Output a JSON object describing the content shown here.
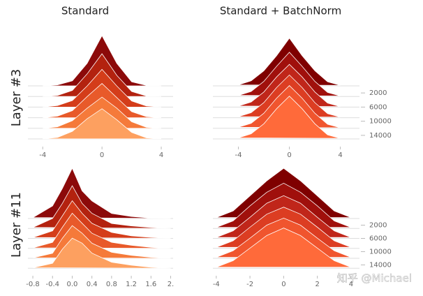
{
  "watermark": "知乎 @Michael",
  "chart_data": [
    {
      "type": "ridgeline",
      "title": "Standard",
      "ylabel": "Layer #3",
      "x": [
        -4,
        -3,
        -2,
        -1,
        0,
        1,
        2,
        3,
        4
      ],
      "xlim": [
        -5,
        4.8
      ],
      "xticks": [
        -4,
        0,
        4
      ],
      "steps": [
        0,
        3000,
        6000,
        9000,
        12000,
        15000
      ],
      "y2lim": [
        0,
        16000
      ],
      "ylim": [
        0,
        1
      ],
      "series": [
        {
          "color": "#8c0a0a",
          "values": [
            0,
            0.02,
            0.1,
            0.45,
            1.0,
            0.45,
            0.08,
            0.01,
            0
          ]
        },
        {
          "color": "#b3220f",
          "values": [
            0,
            0.02,
            0.12,
            0.45,
            0.85,
            0.42,
            0.1,
            0.01,
            0
          ]
        },
        {
          "color": "#d43d1a",
          "values": [
            0,
            0.03,
            0.13,
            0.42,
            0.75,
            0.42,
            0.12,
            0.02,
            0
          ]
        },
        {
          "color": "#e85a2a",
          "values": [
            0,
            0.03,
            0.14,
            0.42,
            0.68,
            0.4,
            0.12,
            0.02,
            0
          ]
        },
        {
          "color": "#f57a3a",
          "values": [
            0,
            0.03,
            0.15,
            0.4,
            0.62,
            0.4,
            0.13,
            0.02,
            0
          ]
        },
        {
          "color": "#fda060",
          "values": [
            0,
            0.03,
            0.15,
            0.4,
            0.6,
            0.38,
            0.13,
            0.02,
            0
          ]
        }
      ]
    },
    {
      "type": "ridgeline",
      "title": "Standard + BatchNorm",
      "x": [
        -4,
        -3,
        -2,
        -1,
        0,
        1,
        2,
        3,
        4
      ],
      "xlim": [
        -6,
        5.5
      ],
      "xticks": [
        -4,
        0,
        4
      ],
      "steps": [
        0,
        3000,
        6000,
        9000,
        12000,
        15000
      ],
      "y2lim": [
        0,
        16000
      ],
      "ylim": [
        0,
        1
      ],
      "y2ticks": [
        2000,
        6000,
        10000,
        14000
      ],
      "series": [
        {
          "color": "#7f0000",
          "values": [
            0.02,
            0.1,
            0.3,
            0.6,
            0.95,
            0.6,
            0.3,
            0.08,
            0.01
          ]
        },
        {
          "color": "#a0100c",
          "values": [
            0.02,
            0.1,
            0.3,
            0.6,
            0.88,
            0.6,
            0.3,
            0.08,
            0.01
          ]
        },
        {
          "color": "#c0261a",
          "values": [
            0.02,
            0.1,
            0.3,
            0.6,
            0.85,
            0.6,
            0.3,
            0.08,
            0.01
          ]
        },
        {
          "color": "#dc3d22",
          "values": [
            0.02,
            0.1,
            0.3,
            0.6,
            0.85,
            0.6,
            0.3,
            0.08,
            0.01
          ]
        },
        {
          "color": "#f0552e",
          "values": [
            0.02,
            0.1,
            0.3,
            0.6,
            0.85,
            0.6,
            0.3,
            0.08,
            0.01
          ]
        },
        {
          "color": "#ff6a3a",
          "values": [
            0.02,
            0.1,
            0.3,
            0.6,
            0.85,
            0.6,
            0.3,
            0.08,
            0.01
          ]
        }
      ]
    },
    {
      "type": "ridgeline",
      "ylabel": "Layer #11",
      "x": [
        -0.8,
        -0.4,
        -0.2,
        0,
        0.2,
        0.4,
        0.8,
        1.2,
        1.6,
        2
      ],
      "xlim": [
        -0.9,
        2.05
      ],
      "xticks": [
        -0.8,
        -0.4,
        {
          "value": 0,
          "label": "0.0"
        },
        0.4,
        0.8,
        1.2,
        1.6,
        {
          "value": 2,
          "label": "2."
        }
      ],
      "steps": [
        0,
        3000,
        6000,
        9000,
        12000,
        15000
      ],
      "y2lim": [
        0,
        16000
      ],
      "ylim": [
        0,
        1
      ],
      "series": [
        {
          "color": "#8c0a0a",
          "values": [
            0.02,
            0.25,
            0.6,
            1.0,
            0.55,
            0.35,
            0.1,
            0.04,
            0.01,
            0
          ]
        },
        {
          "color": "#b3220f",
          "values": [
            0.02,
            0.2,
            0.5,
            0.85,
            0.5,
            0.3,
            0.1,
            0.05,
            0.02,
            0
          ]
        },
        {
          "color": "#d43d1a",
          "values": [
            0.02,
            0.15,
            0.45,
            0.75,
            0.5,
            0.3,
            0.12,
            0.05,
            0.02,
            0
          ]
        },
        {
          "color": "#e85a2a",
          "values": [
            0.01,
            0.12,
            0.42,
            0.7,
            0.5,
            0.3,
            0.12,
            0.06,
            0.02,
            0
          ]
        },
        {
          "color": "#f57a3a",
          "values": [
            0.01,
            0.1,
            0.4,
            0.65,
            0.5,
            0.3,
            0.12,
            0.06,
            0.02,
            0
          ]
        },
        {
          "color": "#fda060",
          "values": [
            0.01,
            0.1,
            0.38,
            0.6,
            0.5,
            0.3,
            0.12,
            0.06,
            0.02,
            0
          ]
        }
      ]
    },
    {
      "type": "ridgeline",
      "x": [
        -4,
        -3,
        -2,
        -1,
        0,
        1,
        2,
        3,
        4
      ],
      "xlim": [
        -4.2,
        4.5
      ],
      "xticks": [
        -4,
        -2,
        0,
        2,
        4
      ],
      "steps": [
        0,
        3000,
        6000,
        9000,
        12000,
        15000
      ],
      "y2lim": [
        0,
        16000
      ],
      "ylim": [
        0,
        1
      ],
      "y2ticks": [
        2000,
        6000,
        10000,
        14000
      ],
      "series": [
        {
          "color": "#7f0000",
          "values": [
            0.02,
            0.15,
            0.45,
            0.75,
            1.0,
            0.75,
            0.45,
            0.15,
            0.02
          ]
        },
        {
          "color": "#a0100c",
          "values": [
            0.02,
            0.15,
            0.45,
            0.72,
            0.9,
            0.72,
            0.45,
            0.15,
            0.02
          ]
        },
        {
          "color": "#c0261a",
          "values": [
            0.02,
            0.15,
            0.42,
            0.7,
            0.85,
            0.7,
            0.42,
            0.15,
            0.02
          ]
        },
        {
          "color": "#dc3d22",
          "values": [
            0.02,
            0.15,
            0.42,
            0.68,
            0.82,
            0.68,
            0.42,
            0.15,
            0.02
          ]
        },
        {
          "color": "#f0552e",
          "values": [
            0.02,
            0.15,
            0.4,
            0.66,
            0.8,
            0.66,
            0.4,
            0.15,
            0.02
          ]
        },
        {
          "color": "#ff6a3a",
          "values": [
            0.02,
            0.15,
            0.4,
            0.65,
            0.8,
            0.65,
            0.4,
            0.15,
            0.02
          ]
        }
      ]
    }
  ]
}
